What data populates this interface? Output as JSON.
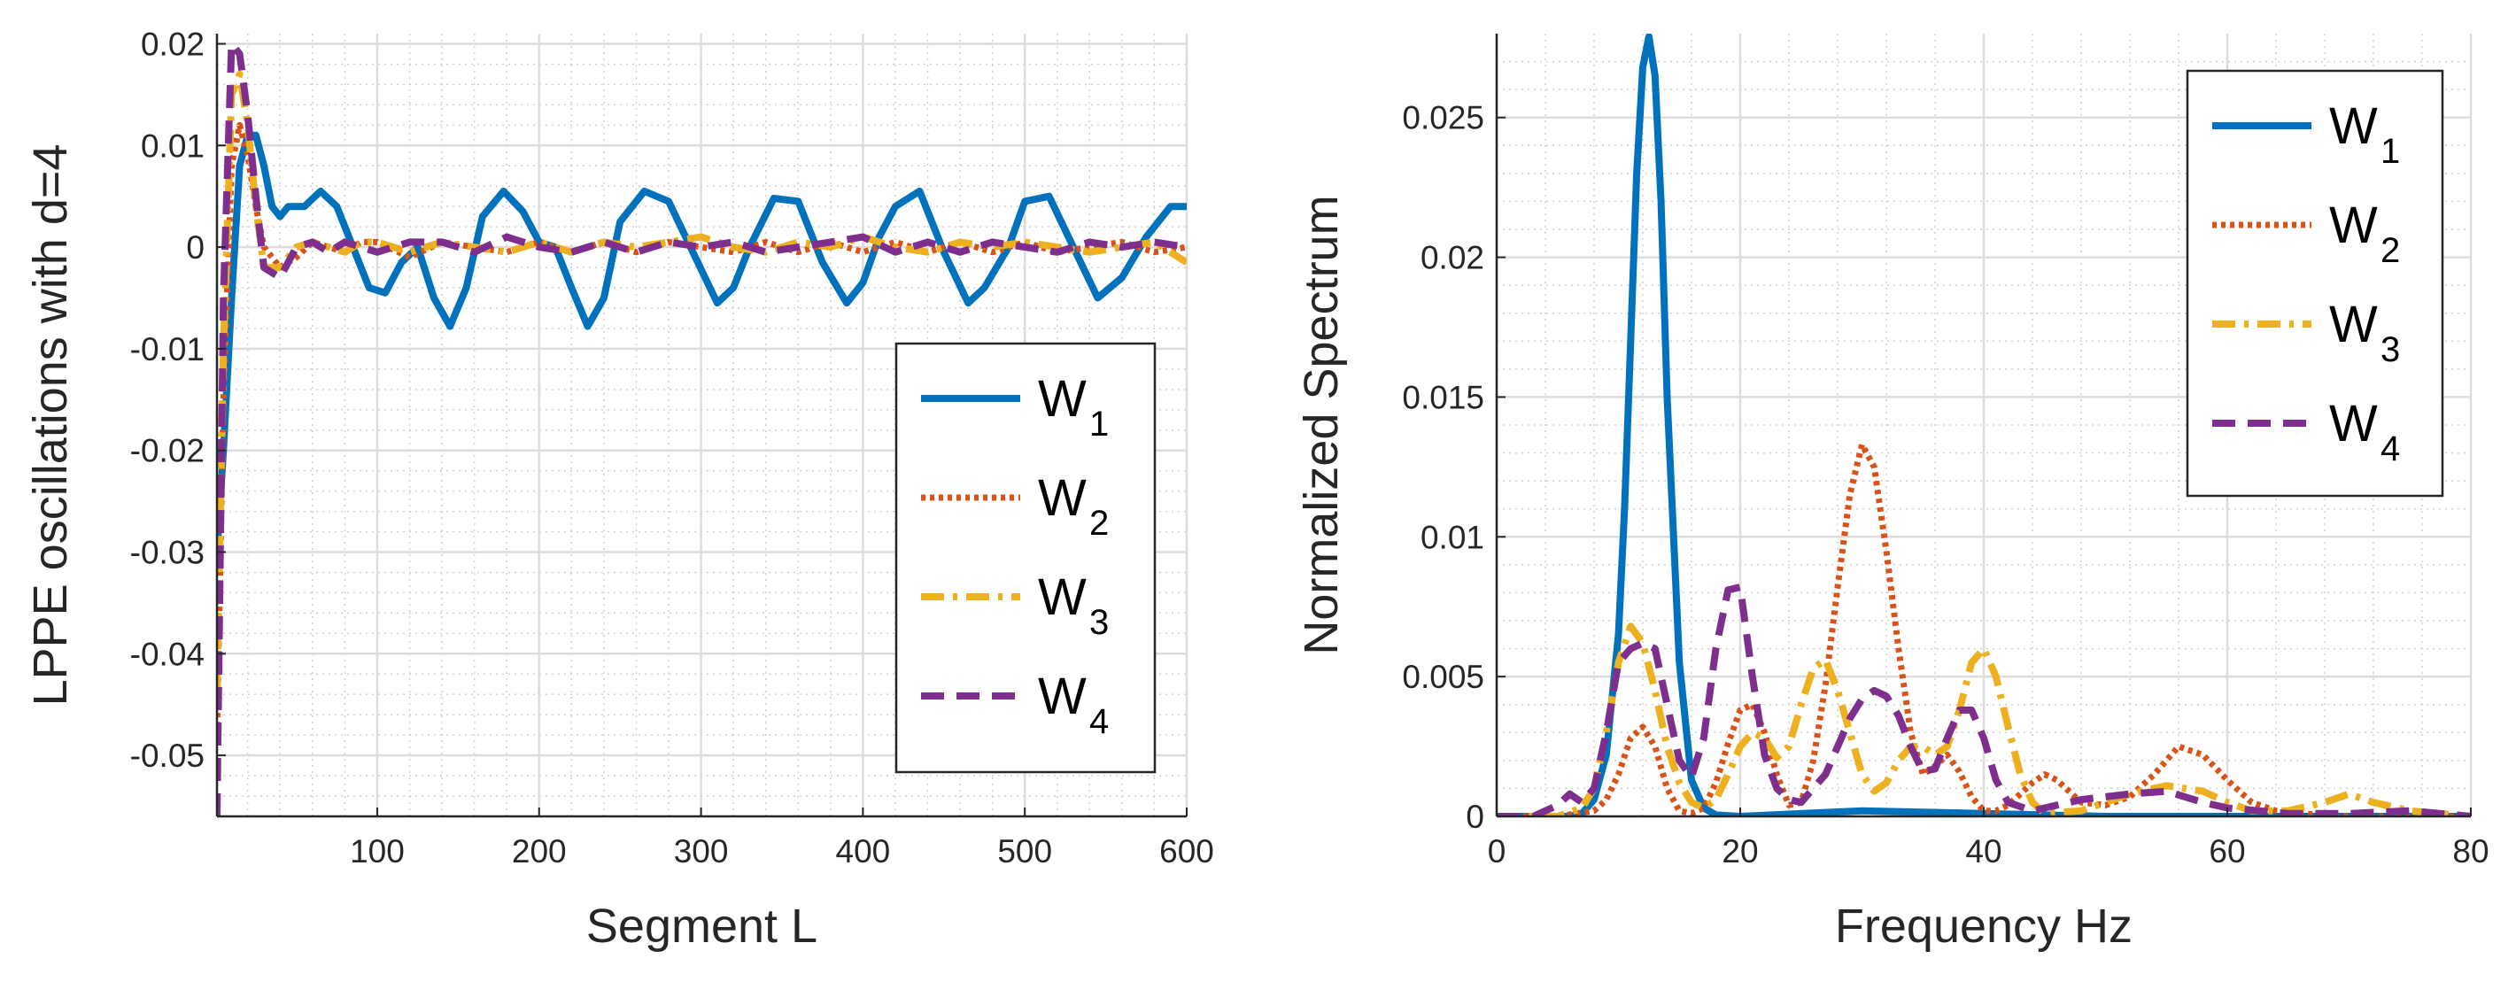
{
  "chart_data": [
    {
      "type": "line",
      "title": "",
      "xlabel": "Segment L",
      "ylabel": "LPPE oscillations with d=4",
      "xlim": [
        1,
        600
      ],
      "ylim": [
        -0.056,
        0.021
      ],
      "xticks": [
        100,
        200,
        300,
        400,
        500,
        600
      ],
      "xtick_labels": [
        "100",
        "200",
        "300",
        "400",
        "500",
        "600"
      ],
      "yticks": [
        0.02,
        0.01,
        0,
        -0.01,
        -0.02,
        -0.03,
        -0.04,
        -0.05
      ],
      "ytick_labels": [
        "0.02",
        "0.01",
        "0",
        "-0.01",
        "-0.02",
        "-0.03",
        "-0.04",
        "-0.05"
      ],
      "grid": true,
      "minor_grid": true,
      "legend_position": "center-right",
      "series": [
        {
          "name": "W",
          "subscript": "1",
          "color": "#0072BD",
          "style": "solid",
          "x": [
            1,
            5,
            10,
            15,
            20,
            25,
            30,
            35,
            40,
            45,
            55,
            65,
            75,
            85,
            95,
            105,
            115,
            125,
            135,
            145,
            155,
            165,
            178,
            190,
            200,
            210,
            220,
            230,
            240,
            250,
            265,
            280,
            295,
            310,
            320,
            330,
            345,
            360,
            375,
            390,
            400,
            410,
            420,
            435,
            450,
            465,
            475,
            490,
            500,
            515,
            530,
            545,
            560,
            575,
            590,
            600
          ],
          "y": [
            -0.03,
            -0.02,
            -0.005,
            0.008,
            0.011,
            0.011,
            0.008,
            0.004,
            0.003,
            0.004,
            0.004,
            0.0055,
            0.004,
            0.0,
            -0.004,
            -0.0045,
            -0.0015,
            0.0,
            -0.005,
            -0.0078,
            -0.004,
            0.003,
            0.0055,
            0.0035,
            0.0005,
            0.0,
            -0.004,
            -0.0078,
            -0.005,
            0.0025,
            0.0055,
            0.0045,
            -0.0005,
            -0.0055,
            -0.004,
            0.0,
            0.0048,
            0.0045,
            -0.0015,
            -0.0055,
            -0.0035,
            0.001,
            0.004,
            0.0055,
            -0.0005,
            -0.0055,
            -0.004,
            0.0,
            0.0045,
            0.005,
            0.0,
            -0.005,
            -0.003,
            0.001,
            0.004,
            0.004
          ]
        },
        {
          "name": "W",
          "subscript": "2",
          "color": "#D95319",
          "style": "dotted",
          "x": [
            1,
            5,
            10,
            15,
            20,
            25,
            30,
            40,
            50,
            60,
            70,
            80,
            90,
            100,
            120,
            140,
            160,
            180,
            200,
            220,
            240,
            260,
            280,
            300,
            320,
            340,
            360,
            380,
            400,
            420,
            440,
            460,
            480,
            500,
            520,
            540,
            560,
            580,
            600
          ],
          "y": [
            -0.048,
            -0.015,
            0.008,
            0.012,
            0.009,
            0.004,
            0.0,
            -0.002,
            -0.001,
            0.0005,
            0.0,
            -0.0005,
            0.0005,
            0.0005,
            -0.001,
            0.0005,
            0.0,
            -0.0005,
            0.0005,
            -0.0005,
            0.0005,
            -0.0005,
            0.0005,
            0.0,
            -0.0005,
            0.0005,
            -0.0005,
            0.0005,
            -0.0005,
            0.0005,
            -0.0005,
            0.0005,
            -0.0005,
            0.0005,
            -0.0005,
            0.0,
            0.0005,
            -0.0005,
            0.0
          ]
        },
        {
          "name": "W",
          "subscript": "3",
          "color": "#EDB120",
          "style": "dashdot",
          "x": [
            1,
            5,
            10,
            15,
            20,
            25,
            30,
            40,
            50,
            60,
            70,
            80,
            90,
            100,
            120,
            140,
            160,
            180,
            200,
            220,
            240,
            260,
            280,
            300,
            320,
            340,
            360,
            380,
            400,
            420,
            440,
            460,
            480,
            500,
            520,
            540,
            560,
            580,
            600
          ],
          "y": [
            -0.044,
            -0.01,
            0.015,
            0.017,
            0.012,
            0.004,
            -0.002,
            -0.002,
            0.0,
            0.0005,
            0.0,
            -0.0005,
            0.0005,
            0.0005,
            -0.0005,
            0.0005,
            0.0,
            -0.0005,
            0.0005,
            -0.0005,
            0.0005,
            0.0,
            0.0005,
            0.001,
            0.0,
            -0.0005,
            0.0005,
            0.0,
            0.001,
            0.0,
            -0.0005,
            0.0005,
            0.0,
            0.0005,
            0.0,
            -0.0005,
            0.0,
            0.0005,
            -0.0015
          ]
        },
        {
          "name": "W",
          "subscript": "4",
          "color": "#7E2F8E",
          "style": "dashed",
          "x": [
            1,
            5,
            10,
            15,
            20,
            25,
            30,
            40,
            50,
            60,
            70,
            80,
            90,
            100,
            120,
            140,
            160,
            180,
            200,
            220,
            240,
            260,
            280,
            300,
            320,
            340,
            360,
            380,
            400,
            420,
            440,
            460,
            480,
            500,
            520,
            540,
            560,
            580,
            600
          ],
          "y": [
            -0.056,
            -0.005,
            0.02,
            0.019,
            0.013,
            0.005,
            -0.002,
            -0.003,
            0.0,
            0.0005,
            -0.0005,
            0.0005,
            0.0,
            -0.0005,
            0.0005,
            0.0005,
            -0.0005,
            0.001,
            0.0,
            -0.0005,
            0.0005,
            -0.0005,
            0.0005,
            0.0,
            0.0005,
            -0.0005,
            0.0,
            0.0005,
            0.001,
            -0.0005,
            0.0005,
            -0.0005,
            0.0005,
            0.0,
            -0.0005,
            0.0005,
            0.0,
            0.0005,
            0.0
          ]
        }
      ]
    },
    {
      "type": "line",
      "title": "",
      "xlabel": "Frequency Hz",
      "ylabel": "Normalized Spectrum",
      "xlim": [
        0,
        80
      ],
      "ylim": [
        0,
        0.028
      ],
      "xticks": [
        0,
        20,
        40,
        60,
        80
      ],
      "xtick_labels": [
        "0",
        "20",
        "40",
        "60",
        "80"
      ],
      "yticks": [
        0,
        0.005,
        0.01,
        0.015,
        0.02,
        0.025
      ],
      "ytick_labels": [
        "0",
        "0.005",
        "0.01",
        "0.015",
        "0.02",
        "0.025"
      ],
      "grid": true,
      "minor_grid": true,
      "legend_position": "top-right",
      "series": [
        {
          "name": "W",
          "subscript": "1",
          "color": "#0072BD",
          "style": "solid",
          "x": [
            0,
            6,
            7,
            8,
            9,
            10,
            10.5,
            11,
            11.5,
            12,
            12.5,
            13,
            13.5,
            14,
            15,
            16,
            17,
            18,
            20,
            30,
            40,
            50,
            60,
            70,
            80
          ],
          "y": [
            0,
            0,
            0.0001,
            0.0006,
            0.0022,
            0.0065,
            0.011,
            0.017,
            0.023,
            0.0268,
            0.0279,
            0.0265,
            0.022,
            0.015,
            0.0055,
            0.0013,
            0.0003,
            5e-05,
            0.0,
            0.0002,
            0.0001,
            0.0,
            0.0,
            0.0,
            0.0
          ]
        },
        {
          "name": "W",
          "subscript": "2",
          "color": "#D95319",
          "style": "dotted",
          "x": [
            0,
            5,
            8,
            9,
            10,
            11,
            12,
            13,
            14,
            15,
            16,
            17,
            18,
            19,
            20,
            21,
            22,
            23,
            24,
            25,
            26,
            27,
            28,
            29,
            30,
            31,
            32,
            33,
            34,
            35,
            36,
            37,
            38,
            39,
            40,
            41,
            42,
            43,
            44,
            45,
            46,
            47,
            48,
            50,
            52,
            54,
            56,
            58,
            60,
            62,
            64,
            66,
            70,
            75,
            80
          ],
          "y": [
            0,
            0,
            0.0002,
            0.0006,
            0.0015,
            0.0028,
            0.0032,
            0.0025,
            0.001,
            0.0002,
            0.0001,
            0.0003,
            0.0012,
            0.0026,
            0.0038,
            0.004,
            0.003,
            0.0015,
            0.0004,
            0.0005,
            0.002,
            0.0047,
            0.0082,
            0.0115,
            0.0133,
            0.0125,
            0.0095,
            0.006,
            0.003,
            0.0015,
            0.0018,
            0.0022,
            0.0016,
            0.0007,
            0.0002,
            0.0002,
            0.0004,
            0.0008,
            0.0012,
            0.0015,
            0.0013,
            0.0009,
            0.0005,
            0.0004,
            0.0007,
            0.0015,
            0.0025,
            0.0022,
            0.0013,
            0.0005,
            0.0002,
            0.0001,
            0.0,
            0.0,
            0.0
          ]
        },
        {
          "name": "W",
          "subscript": "3",
          "color": "#EDB120",
          "style": "dashdot",
          "x": [
            0,
            5,
            7,
            8,
            9,
            10,
            11,
            12,
            13,
            14,
            15,
            16,
            17,
            18,
            19,
            20,
            21,
            22,
            23,
            24,
            25,
            26,
            27,
            28,
            29,
            30,
            31,
            32,
            33,
            34,
            35,
            36,
            37,
            38,
            39,
            40,
            41,
            42,
            43,
            44,
            45,
            48,
            50,
            52,
            55,
            58,
            60,
            62,
            65,
            68,
            70,
            72,
            75,
            80
          ],
          "y": [
            0,
            0,
            0.0003,
            0.001,
            0.003,
            0.0055,
            0.0068,
            0.0062,
            0.0045,
            0.0025,
            0.0012,
            0.0005,
            0.0003,
            0.0006,
            0.0015,
            0.0025,
            0.003,
            0.0028,
            0.0021,
            0.0025,
            0.004,
            0.0053,
            0.0056,
            0.0045,
            0.003,
            0.0015,
            0.0009,
            0.0012,
            0.002,
            0.0025,
            0.0025,
            0.0022,
            0.0025,
            0.0038,
            0.0055,
            0.006,
            0.005,
            0.0032,
            0.0015,
            0.0005,
            0.0001,
            0.0002,
            0.0005,
            0.0008,
            0.0011,
            0.0009,
            0.0005,
            0.0002,
            0.0002,
            0.0005,
            0.0008,
            0.0005,
            0.0002,
            0.0
          ]
        },
        {
          "name": "W",
          "subscript": "4",
          "color": "#7E2F8E",
          "style": "dashed",
          "x": [
            0,
            3,
            5,
            6,
            7,
            8,
            9,
            10,
            11,
            12,
            13,
            14,
            15,
            16,
            17,
            18,
            19,
            20,
            21,
            22,
            23,
            24,
            25,
            26,
            27,
            28,
            29,
            30,
            31,
            32,
            33,
            34,
            35,
            36,
            37,
            38,
            39,
            40,
            41,
            42,
            44,
            46,
            48,
            50,
            52,
            55,
            58,
            60,
            65,
            70,
            75,
            80
          ],
          "y": [
            0,
            0,
            0.0004,
            0.0008,
            0.0005,
            0.001,
            0.003,
            0.0055,
            0.006,
            0.0062,
            0.006,
            0.004,
            0.002,
            0.0014,
            0.0028,
            0.006,
            0.0081,
            0.0082,
            0.005,
            0.0022,
            0.001,
            0.0006,
            0.0005,
            0.001,
            0.0015,
            0.0025,
            0.0035,
            0.0042,
            0.0045,
            0.0043,
            0.0036,
            0.0025,
            0.0016,
            0.0017,
            0.0028,
            0.0038,
            0.0038,
            0.0028,
            0.0013,
            0.0005,
            0.0002,
            0.0004,
            0.0006,
            0.0007,
            0.0008,
            0.0009,
            0.0005,
            0.0003,
            0.0001,
            0.0001,
            0.0002,
            0.0
          ]
        }
      ]
    }
  ]
}
